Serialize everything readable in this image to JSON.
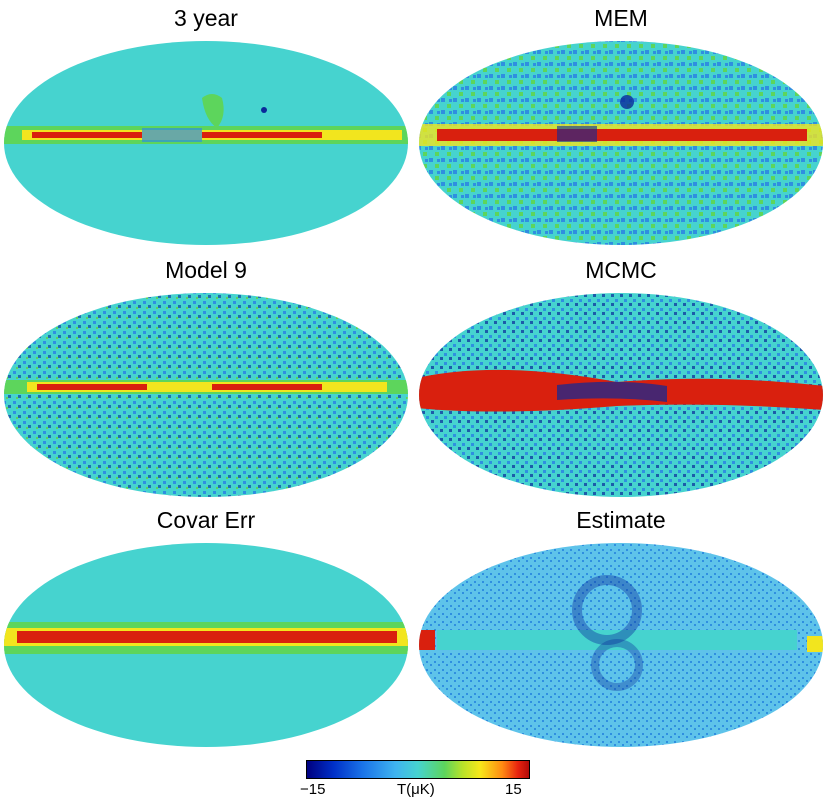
{
  "panels": [
    {
      "id": "three-year",
      "title": "3 year"
    },
    {
      "id": "mem",
      "title": "MEM"
    },
    {
      "id": "model-9",
      "title": "Model 9"
    },
    {
      "id": "mcmc",
      "title": "MCMC"
    },
    {
      "id": "covar-err",
      "title": "Covar Err"
    },
    {
      "id": "estimate",
      "title": "Estimate"
    }
  ],
  "colorbar": {
    "min_label": "−15",
    "unit_label": "T(μK)",
    "max_label": "15",
    "min_value": -15,
    "max_value": 15
  },
  "colors": {
    "background_cyan": "#46d3cf",
    "deep_blue": "#0a2a9a",
    "mid_blue": "#2f8fe0",
    "green": "#5dd55c",
    "yellow": "#f2e51e",
    "orange": "#ff8a12",
    "red": "#d9200e"
  }
}
